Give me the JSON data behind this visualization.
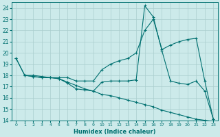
{
  "background_color": "#cceaea",
  "grid_color": "#aacece",
  "line_color": "#007070",
  "xlim": [
    -0.5,
    23.5
  ],
  "ylim": [
    14,
    24.5
  ],
  "yticks": [
    14,
    15,
    16,
    17,
    18,
    19,
    20,
    21,
    22,
    23,
    24
  ],
  "xticks": [
    0,
    1,
    2,
    3,
    4,
    5,
    6,
    7,
    8,
    9,
    10,
    11,
    12,
    13,
    14,
    15,
    16,
    17,
    18,
    19,
    20,
    21,
    22,
    23
  ],
  "xlabel": "Humidex (Indice chaleur)",
  "series": [
    {
      "x": [
        0,
        1,
        2,
        3,
        4,
        5,
        6,
        7,
        8,
        9,
        10,
        11,
        12,
        13,
        14,
        15,
        16,
        17,
        18,
        19,
        20,
        21,
        22,
        23
      ],
      "y": [
        19.5,
        18.0,
        18.0,
        17.9,
        17.8,
        17.8,
        17.8,
        17.5,
        17.5,
        17.5,
        18.5,
        19.0,
        19.3,
        19.5,
        20.0,
        22.0,
        23.0,
        20.3,
        20.7,
        21.0,
        21.2,
        21.3,
        17.5,
        14.1
      ]
    },
    {
      "x": [
        0,
        1,
        2,
        3,
        4,
        5,
        6,
        7,
        8,
        9,
        10,
        11,
        12,
        13,
        14,
        15,
        16,
        17,
        18,
        19,
        20,
        21,
        22,
        23
      ],
      "y": [
        19.5,
        18.0,
        17.9,
        17.8,
        17.8,
        17.7,
        17.3,
        16.8,
        16.7,
        16.6,
        17.4,
        17.5,
        17.5,
        17.5,
        17.6,
        24.2,
        23.2,
        20.2,
        17.5,
        17.3,
        17.2,
        17.5,
        16.6,
        14.1
      ]
    },
    {
      "x": [
        1,
        2,
        3,
        4,
        5,
        6,
        7,
        8,
        9,
        10,
        11,
        12,
        13,
        14,
        15,
        16,
        17,
        18,
        19,
        20,
        21,
        22,
        23
      ],
      "y": [
        18.0,
        17.9,
        17.8,
        17.8,
        17.7,
        17.4,
        17.1,
        16.8,
        16.6,
        16.3,
        16.2,
        16.0,
        15.8,
        15.6,
        15.4,
        15.2,
        14.9,
        14.7,
        14.5,
        14.3,
        14.1,
        14.0,
        13.9
      ]
    }
  ]
}
